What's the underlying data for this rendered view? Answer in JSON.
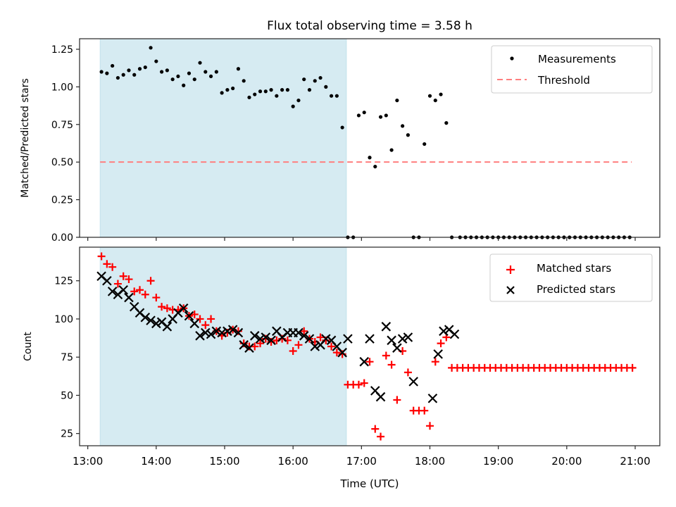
{
  "chart_data": [
    {
      "type": "scatter",
      "title": "Flux total observing time = 3.58 h",
      "xlabel": "",
      "ylabel": "Matched/Predicted stars",
      "xlim_hours": [
        12.88,
        21.36
      ],
      "ylim": [
        0.0,
        1.32
      ],
      "yticks": [
        "0.00",
        "0.25",
        "0.50",
        "0.75",
        "1.00",
        "1.25"
      ],
      "ytick_values": [
        0,
        0.25,
        0.5,
        0.75,
        1.0,
        1.25
      ],
      "shaded_span_hours": [
        13.18,
        16.78
      ],
      "shaded_color": "#add8e6",
      "legend": {
        "placement": "top-right",
        "entries": [
          "Measurements",
          "Threshold"
        ]
      },
      "threshold": {
        "name": "Threshold",
        "value": 0.5,
        "x_hours": [
          13.18,
          20.95
        ],
        "color": "#ff7f7f",
        "style": "dashed"
      },
      "series": [
        {
          "name": "Measurements",
          "color": "#000000",
          "marker": "dot",
          "x_hours": [
            13.2,
            13.28,
            13.36,
            13.44,
            13.52,
            13.6,
            13.68,
            13.76,
            13.84,
            13.92,
            14.0,
            14.08,
            14.16,
            14.24,
            14.32,
            14.4,
            14.48,
            14.56,
            14.64,
            14.72,
            14.8,
            14.88,
            14.96,
            15.04,
            15.12,
            15.2,
            15.28,
            15.36,
            15.44,
            15.52,
            15.6,
            15.68,
            15.76,
            15.84,
            15.92,
            16.0,
            16.08,
            16.16,
            16.24,
            16.32,
            16.4,
            16.48,
            16.56,
            16.64,
            16.72,
            16.8,
            16.88,
            16.96,
            17.04,
            17.12,
            17.2,
            17.28,
            17.36,
            17.44,
            17.52,
            17.6,
            17.68,
            17.76,
            17.84,
            17.92,
            18.0,
            18.08,
            18.16,
            18.24,
            18.32,
            18.44,
            18.52,
            18.6,
            18.68,
            18.76,
            18.84,
            18.92,
            19.0,
            19.08,
            19.16,
            19.24,
            19.32,
            19.4,
            19.48,
            19.56,
            19.64,
            19.72,
            19.8,
            19.88,
            19.96,
            20.04,
            20.12,
            20.2,
            20.28,
            20.36,
            20.44,
            20.52,
            20.6,
            20.68,
            20.76,
            20.84,
            20.92
          ],
          "values": [
            1.1,
            1.09,
            1.14,
            1.06,
            1.08,
            1.11,
            1.08,
            1.12,
            1.13,
            1.26,
            1.17,
            1.1,
            1.11,
            1.05,
            1.07,
            1.01,
            1.09,
            1.05,
            1.16,
            1.1,
            1.07,
            1.1,
            0.96,
            0.98,
            0.99,
            1.12,
            1.04,
            0.93,
            0.95,
            0.97,
            0.97,
            0.98,
            0.94,
            0.98,
            0.98,
            0.87,
            0.91,
            1.05,
            0.98,
            1.04,
            1.06,
            1.0,
            0.94,
            0.94,
            0.73,
            0.0,
            0.0,
            0.81,
            0.83,
            0.53,
            0.47,
            0.8,
            0.81,
            0.58,
            0.91,
            0.74,
            0.68,
            0.0,
            0.0,
            0.62,
            0.94,
            0.91,
            0.95,
            0.76,
            0.0,
            0.0,
            0.0,
            0.0,
            0.0,
            0.0,
            0.0,
            0.0,
            0.0,
            0.0,
            0.0,
            0.0,
            0.0,
            0.0,
            0.0,
            0.0,
            0.0,
            0.0,
            0.0,
            0.0,
            0.0,
            0.0,
            0.0,
            0.0,
            0.0,
            0.0,
            0.0,
            0.0,
            0.0,
            0.0,
            0.0,
            0.0,
            0.0
          ]
        }
      ]
    },
    {
      "type": "scatter",
      "title": "",
      "xlabel": "Time (UTC)",
      "ylabel": "Count",
      "xlim_hours": [
        12.88,
        21.36
      ],
      "ylim": [
        17,
        147
      ],
      "xticks": [
        "13:00",
        "14:00",
        "15:00",
        "16:00",
        "17:00",
        "18:00",
        "19:00",
        "20:00",
        "21:00"
      ],
      "xtick_hours": [
        13,
        14,
        15,
        16,
        17,
        18,
        19,
        20,
        21
      ],
      "yticks": [
        "25",
        "50",
        "75",
        "100",
        "125"
      ],
      "ytick_values": [
        25,
        50,
        75,
        100,
        125
      ],
      "shaded_span_hours": [
        13.18,
        16.78
      ],
      "shaded_color": "#add8e6",
      "legend": {
        "placement": "top-right",
        "entries": [
          "Matched stars",
          "Predicted stars"
        ]
      },
      "series": [
        {
          "name": "Matched stars",
          "color": "#ff0000",
          "marker": "plus",
          "x_hours": [
            13.2,
            13.28,
            13.36,
            13.44,
            13.52,
            13.6,
            13.68,
            13.76,
            13.84,
            13.92,
            14.0,
            14.08,
            14.16,
            14.24,
            14.32,
            14.4,
            14.48,
            14.56,
            14.64,
            14.72,
            14.8,
            14.88,
            14.96,
            15.04,
            15.12,
            15.2,
            15.28,
            15.36,
            15.44,
            15.52,
            15.6,
            15.68,
            15.76,
            15.84,
            15.92,
            16.0,
            16.08,
            16.16,
            16.24,
            16.32,
            16.4,
            16.48,
            16.56,
            16.64,
            16.72,
            16.8,
            16.88,
            16.96,
            17.04,
            17.12,
            17.2,
            17.28,
            17.36,
            17.44,
            17.52,
            17.6,
            17.68,
            17.76,
            17.84,
            17.92,
            18.0,
            18.08,
            18.16,
            18.24,
            18.32,
            18.4,
            18.48,
            18.56,
            18.64,
            18.72,
            18.8,
            18.88,
            18.96,
            19.04,
            19.12,
            19.2,
            19.28,
            19.36,
            19.44,
            19.52,
            19.6,
            19.68,
            19.76,
            19.84,
            19.92,
            20.0,
            20.08,
            20.16,
            20.24,
            20.32,
            20.4,
            20.48,
            20.56,
            20.64,
            20.72,
            20.8,
            20.88,
            20.96
          ],
          "values": [
            141,
            136,
            134,
            123,
            128,
            126,
            118,
            119,
            116,
            125,
            114,
            108,
            107,
            106,
            106,
            107,
            102,
            103,
            100,
            96,
            100,
            92,
            89,
            91,
            93,
            92,
            84,
            82,
            82,
            84,
            87,
            85,
            86,
            87,
            86,
            79,
            83,
            92,
            87,
            85,
            88,
            86,
            82,
            78,
            77,
            57,
            57,
            57,
            58,
            72,
            28,
            23,
            76,
            70,
            47,
            79,
            65,
            40,
            40,
            40,
            30,
            72,
            84,
            88,
            68,
            68,
            68,
            68,
            68,
            68,
            68,
            68,
            68,
            68,
            68,
            68,
            68,
            68,
            68,
            68,
            68,
            68,
            68,
            68,
            68,
            68,
            68,
            68,
            68,
            68,
            68,
            68,
            68,
            68,
            68,
            68,
            68,
            68
          ],
          "note": "approximate readings"
        },
        {
          "name": "Predicted stars",
          "color": "#000000",
          "marker": "x",
          "x_hours": [
            13.2,
            13.28,
            13.36,
            13.44,
            13.52,
            13.6,
            13.68,
            13.76,
            13.84,
            13.92,
            14.0,
            14.08,
            14.16,
            14.24,
            14.32,
            14.4,
            14.48,
            14.56,
            14.64,
            14.72,
            14.8,
            14.88,
            14.96,
            15.04,
            15.12,
            15.2,
            15.28,
            15.36,
            15.44,
            15.52,
            15.6,
            15.68,
            15.76,
            15.84,
            15.92,
            16.0,
            16.08,
            16.16,
            16.24,
            16.32,
            16.4,
            16.48,
            16.56,
            16.64,
            16.72,
            16.8,
            17.04,
            17.12,
            17.2,
            17.28,
            17.36,
            17.44,
            17.52,
            17.6,
            17.68,
            17.76,
            18.04,
            18.12,
            18.2,
            18.28,
            18.36
          ],
          "values": [
            128,
            125,
            118,
            116,
            119,
            114,
            108,
            104,
            101,
            99,
            97,
            98,
            95,
            100,
            104,
            107,
            102,
            97,
            89,
            91,
            90,
            92,
            91,
            92,
            93,
            91,
            83,
            81,
            89,
            87,
            88,
            86,
            92,
            88,
            91,
            91,
            91,
            89,
            87,
            82,
            83,
            87,
            86,
            82,
            78,
            87,
            72,
            87,
            53,
            49,
            95,
            86,
            81,
            87,
            88,
            59,
            48,
            77,
            92,
            93,
            90
          ]
        }
      ]
    }
  ]
}
